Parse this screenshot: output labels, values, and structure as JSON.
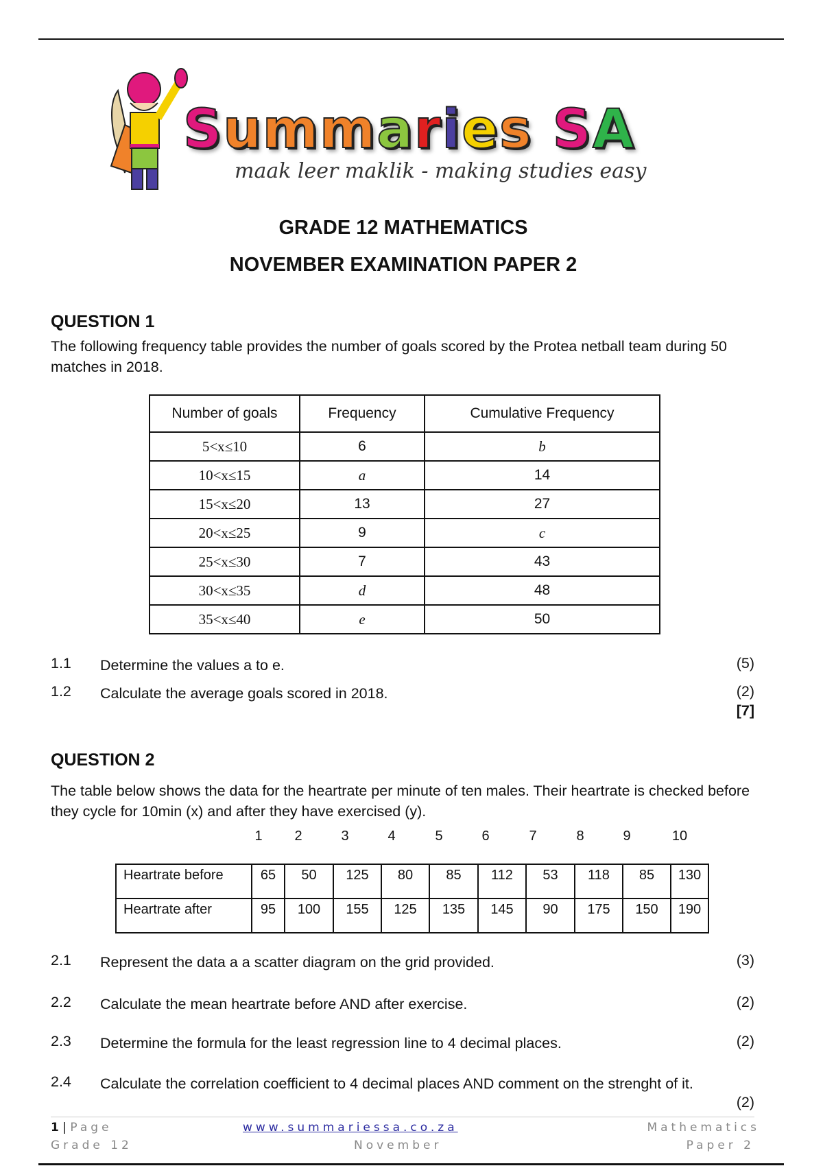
{
  "logo": {
    "wordmark": "Summaries SA",
    "tagline": "maak leer maklik - making studies easy",
    "letter_colors": [
      "#e0197d",
      "#f0822a",
      "#f0822a",
      "#f0822a",
      "#8cc63f",
      "#e02020",
      "#4b3fa0",
      "#f5d000",
      "#f0822a",
      "#e0197d",
      "#2fb34a"
    ]
  },
  "titles": {
    "line1": "GRADE 12 MATHEMATICS",
    "line2": "NOVEMBER EXAMINATION PAPER 2"
  },
  "q1": {
    "heading": "QUESTION 1",
    "intro": "The following frequency table provides the number of goals scored by the Protea netball team during 50 matches in 2018.",
    "headers": [
      "Number of goals",
      "Frequency",
      "Cumulative Frequency"
    ],
    "rows": [
      [
        "5<x≤10",
        "6",
        "b"
      ],
      [
        "10<x≤15",
        "a",
        "14"
      ],
      [
        "15<x≤20",
        "13",
        "27"
      ],
      [
        "20<x≤25",
        "9",
        "c"
      ],
      [
        "25<x≤30",
        "7",
        "43"
      ],
      [
        "30<x≤35",
        "d",
        "48"
      ],
      [
        "35<x≤40",
        "e",
        "50"
      ]
    ],
    "subs": [
      {
        "num": "1.1",
        "text": "Determine the values a to e.",
        "marks": "(5)"
      },
      {
        "num": "1.2",
        "text": "Calculate the average goals scored in 2018.",
        "marks": "(2)"
      }
    ],
    "total": "[7]"
  },
  "q2": {
    "heading": "QUESTION 2",
    "intro": "The table below shows the data for the heartrate per minute of ten males. Their heartrate is checked before they cycle for 10min (x) and after they have exercised (y).",
    "column_numbers": [
      "1",
      "2",
      "3",
      "4",
      "5",
      "6",
      "7",
      "8",
      "9",
      "10"
    ],
    "rows": [
      {
        "label": "Heartrate before",
        "values": [
          "65",
          "50",
          "125",
          "80",
          "85",
          "112",
          "53",
          "118",
          "85",
          "130"
        ]
      },
      {
        "label": "Heartrate after",
        "values": [
          "95",
          "100",
          "155",
          "125",
          "135",
          "145",
          "90",
          "175",
          "150",
          "190"
        ]
      }
    ],
    "subs": [
      {
        "num": "2.1",
        "text": "Represent the data a a scatter diagram on the grid provided.",
        "marks": "(3)"
      },
      {
        "num": "2.2",
        "text": "Calculate the mean heartrate before AND after exercise.",
        "marks": "(2)"
      },
      {
        "num": "2.3",
        "text": "Determine the formula for the least regression line to 4 decimal places.",
        "marks": "(2)"
      },
      {
        "num": "2.4",
        "text": "Calculate the correlation coefficient to 4 decimal places AND comment on the strenght of it.",
        "marks": "(2)"
      }
    ]
  },
  "footer": {
    "page_num": "1",
    "page_label": "Page",
    "website": "www.summariessa.co.za",
    "subject": "Mathematics",
    "grade": "Grade 12",
    "month": "November",
    "paper": "Paper 2"
  }
}
